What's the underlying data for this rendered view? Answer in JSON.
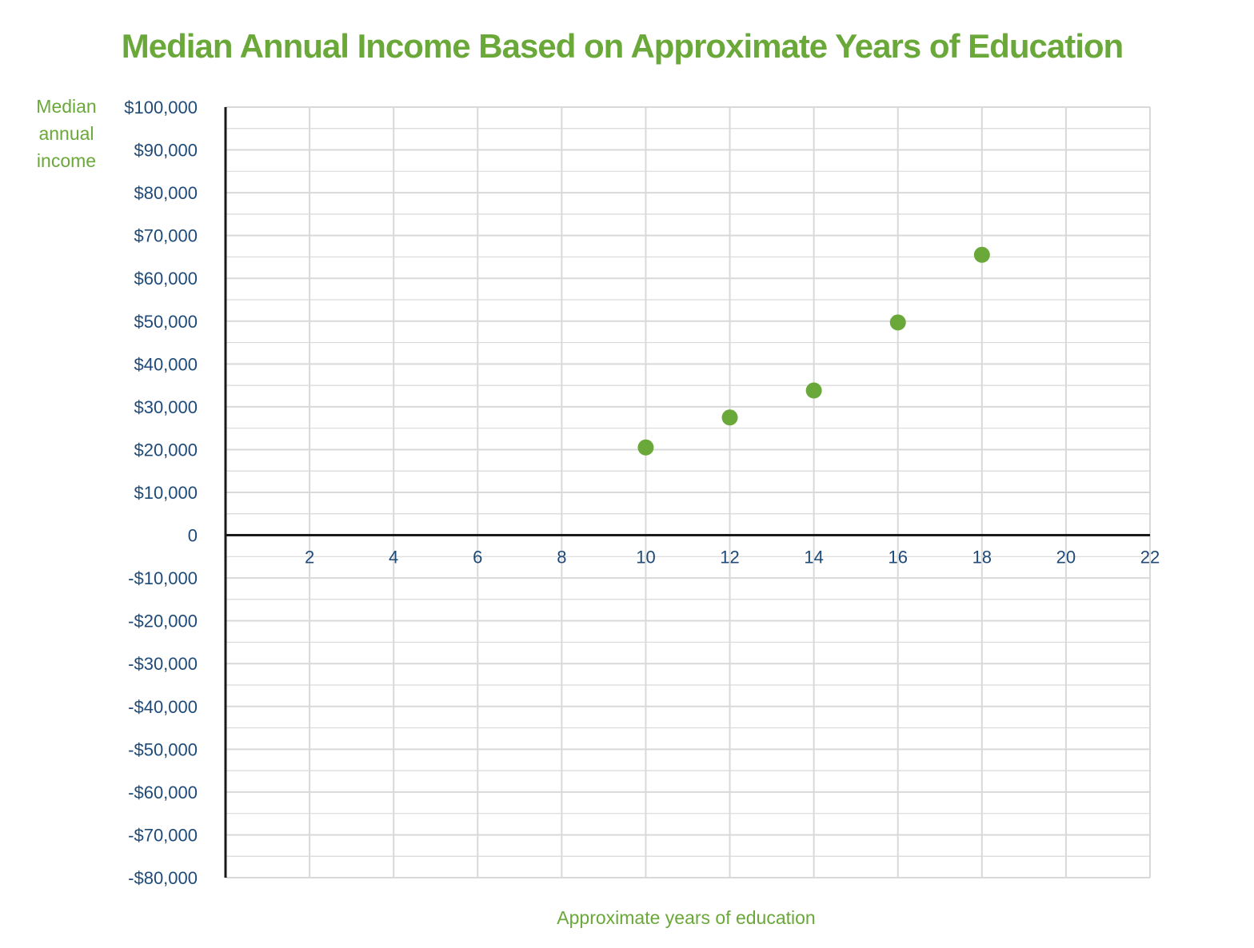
{
  "chart_data": {
    "type": "scatter",
    "title": "Median Annual Income Based on Approximate Years of Education",
    "ylabel_lines": [
      "Median",
      "annual",
      "income"
    ],
    "xlabel": "Approximate years of education",
    "xlim": [
      0,
      22
    ],
    "ylim": [
      -80000,
      100000
    ],
    "x_ticks": [
      2,
      4,
      6,
      8,
      10,
      12,
      14,
      16,
      18,
      20,
      22
    ],
    "y_ticks": [
      {
        "value": 100000,
        "label": "$100,000"
      },
      {
        "value": 90000,
        "label": "$90,000"
      },
      {
        "value": 80000,
        "label": "$80,000"
      },
      {
        "value": 70000,
        "label": "$70,000"
      },
      {
        "value": 60000,
        "label": "$60,000"
      },
      {
        "value": 50000,
        "label": "$50,000"
      },
      {
        "value": 40000,
        "label": "$40,000"
      },
      {
        "value": 30000,
        "label": "$30,000"
      },
      {
        "value": 20000,
        "label": "$20,000"
      },
      {
        "value": 10000,
        "label": "$10,000"
      },
      {
        "value": 0,
        "label": "0"
      },
      {
        "value": -10000,
        "label": "-$10,000"
      },
      {
        "value": -20000,
        "label": "-$20,000"
      },
      {
        "value": -30000,
        "label": "-$30,000"
      },
      {
        "value": -40000,
        "label": "-$40,000"
      },
      {
        "value": -50000,
        "label": "-$50,000"
      },
      {
        "value": -60000,
        "label": "-$60,000"
      },
      {
        "value": -70000,
        "label": "-$70,000"
      },
      {
        "value": -80000,
        "label": "-$80,000"
      }
    ],
    "points": [
      {
        "x": 10,
        "y": 20500
      },
      {
        "x": 12,
        "y": 27500
      },
      {
        "x": 14,
        "y": 33800
      },
      {
        "x": 16,
        "y": 49700
      },
      {
        "x": 18,
        "y": 65500
      }
    ],
    "grid": true,
    "minor_y_step": 5000,
    "colors": {
      "accent": "#6aa83a",
      "tick_text": "#1f4a78",
      "axis": "#1a1a1a",
      "grid": "#d9d9d9"
    }
  }
}
